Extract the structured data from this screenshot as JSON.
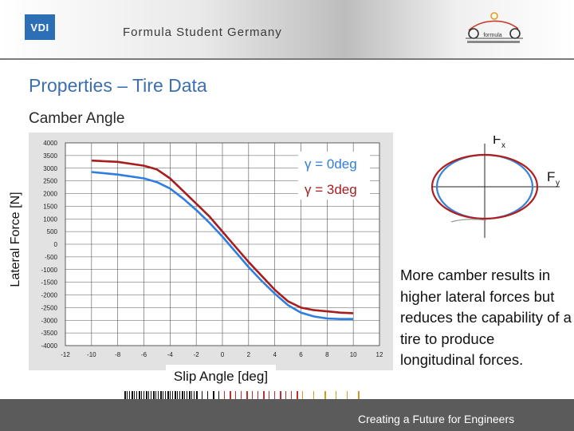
{
  "header": {
    "vdi_logo_text": "VDI",
    "org_title": "Formula Student Germany",
    "org_subtitle": "",
    "right_logo_text": "formula"
  },
  "slide": {
    "title": "Properties – Tire Data",
    "subtitle": "Camber Angle",
    "description": "More camber results in higher lateral forces but reduces the capability of a tire to produce longitudinal forces."
  },
  "diagram": {
    "fx_label": "F",
    "fx_sub": "x",
    "fy_label": "F",
    "fy_sub": "y",
    "colors": {
      "blue": "#3b82d6",
      "red": "#b01e1e"
    }
  },
  "footer": {
    "tagline": "Creating a Future for Engineers"
  },
  "chart_data": {
    "type": "line",
    "xlabel": "Slip Angle [deg]",
    "ylabel": "Lateral Force [N]",
    "xlim": [
      -12,
      12
    ],
    "ylim": [
      -4000,
      4000
    ],
    "x_ticks": [
      -12,
      -10,
      -8,
      -6,
      -4,
      -2,
      0,
      2,
      4,
      6,
      8,
      10,
      12
    ],
    "y_ticks": [
      4000,
      3500,
      3000,
      2500,
      2000,
      1500,
      1000,
      500,
      0,
      -500,
      -1000,
      -1500,
      -2000,
      -2500,
      -3000,
      -3500,
      -4000
    ],
    "grid": true,
    "series": [
      {
        "name": "γ = 0deg",
        "color": "#2f7de1",
        "x": [
          -10,
          -8,
          -6,
          -5,
          -4,
          -3,
          -2,
          -1,
          0,
          1,
          2,
          3,
          4,
          5,
          6,
          7,
          8,
          9,
          10
        ],
        "y": [
          2850,
          2750,
          2600,
          2450,
          2200,
          1800,
          1350,
          850,
          300,
          -300,
          -900,
          -1450,
          -1950,
          -2400,
          -2700,
          -2850,
          -2930,
          -2950,
          -2950
        ]
      },
      {
        "name": "γ = 3deg",
        "color": "#a81e1e",
        "x": [
          -10,
          -8,
          -6,
          -5,
          -4,
          -3,
          -2,
          -1,
          0,
          1,
          2,
          3,
          4,
          5,
          6,
          7,
          8,
          9,
          10
        ],
        "y": [
          3300,
          3250,
          3100,
          2950,
          2600,
          2100,
          1600,
          1100,
          500,
          -100,
          -700,
          -1250,
          -1800,
          -2250,
          -2500,
          -2600,
          -2650,
          -2700,
          -2720
        ]
      }
    ]
  }
}
